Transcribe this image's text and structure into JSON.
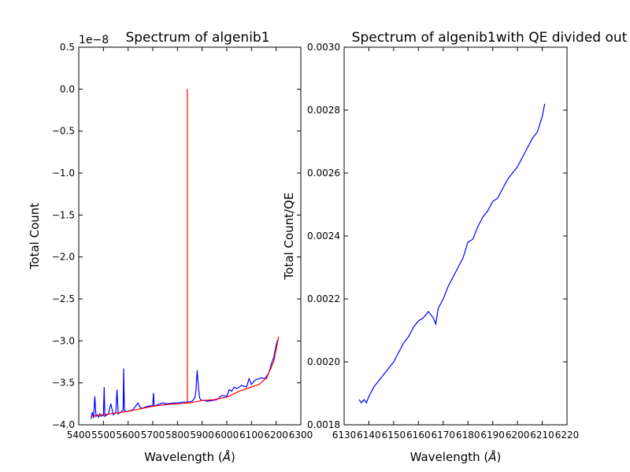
{
  "chart_data": [
    {
      "type": "line",
      "title": "Spectrum of algenib1",
      "xlabel": "Wavelength ($\\AA$)",
      "ylabel": "Total Count",
      "offset_label": "1e−8",
      "xlim": [
        5400,
        6300
      ],
      "ylim": [
        -4.0,
        0.5
      ],
      "xticks": [
        "5400",
        "5500",
        "5600",
        "5700",
        "5800",
        "5900",
        "6000",
        "6100",
        "6200",
        "6300"
      ],
      "yticks": [
        "−4.0",
        "−3.5",
        "−3.0",
        "−2.5",
        "−2.0",
        "−1.5",
        "−1.0",
        "−0.5",
        "0.0",
        "0.5"
      ],
      "series": [
        {
          "color": "#0000ff",
          "x": [
            5450,
            5455,
            5460,
            5465,
            5470,
            5475,
            5480,
            5485,
            5490,
            5495,
            5500,
            5503,
            5506,
            5510,
            5520,
            5530,
            5540,
            5550,
            5555,
            5560,
            5570,
            5580,
            5582,
            5585,
            5590,
            5600,
            5620,
            5640,
            5650,
            5660,
            5680,
            5700,
            5703,
            5706,
            5720,
            5740,
            5760,
            5780,
            5800,
            5820,
            5840,
            5860,
            5870,
            5875,
            5880,
            5885,
            5890,
            5895,
            5900,
            5910,
            5920,
            5940,
            5960,
            5980,
            6000,
            6010,
            6020,
            6030,
            6040,
            6060,
            6080,
            6090,
            6100,
            6110,
            6120,
            6140,
            6160,
            6170,
            6180,
            6190,
            6200,
            6205,
            6210
          ],
          "y": [
            -3.93,
            -3.85,
            -3.92,
            -3.66,
            -3.9,
            -3.88,
            -3.91,
            -3.87,
            -3.9,
            -3.88,
            -3.89,
            -3.55,
            -3.9,
            -3.89,
            -3.87,
            -3.75,
            -3.88,
            -3.86,
            -3.58,
            -3.87,
            -3.85,
            -3.82,
            -3.33,
            -3.83,
            -3.84,
            -3.84,
            -3.82,
            -3.74,
            -3.8,
            -3.8,
            -3.78,
            -3.77,
            -3.62,
            -3.78,
            -3.76,
            -3.74,
            -3.75,
            -3.74,
            -3.74,
            -3.73,
            -3.73,
            -3.72,
            -3.68,
            -3.6,
            -3.35,
            -3.55,
            -3.68,
            -3.7,
            -3.71,
            -3.71,
            -3.72,
            -3.71,
            -3.7,
            -3.65,
            -3.66,
            -3.58,
            -3.6,
            -3.55,
            -3.57,
            -3.53,
            -3.55,
            -3.45,
            -3.52,
            -3.48,
            -3.46,
            -3.44,
            -3.45,
            -3.38,
            -3.28,
            -3.2,
            -3.05,
            -3.0,
            -2.98
          ]
        },
        {
          "color": "#ff0000",
          "x": [
            5450,
            5500,
            5550,
            5600,
            5650,
            5700,
            5750,
            5800,
            5840,
            5840,
            5840,
            5845,
            5850,
            5900,
            5950,
            6000,
            6050,
            6100,
            6130,
            6150,
            6170,
            6190,
            6200,
            6210
          ],
          "y": [
            -3.9,
            -3.88,
            -3.86,
            -3.84,
            -3.81,
            -3.78,
            -3.76,
            -3.75,
            -3.74,
            0.0,
            -3.74,
            -3.74,
            -3.74,
            -3.71,
            -3.7,
            -3.67,
            -3.6,
            -3.55,
            -3.52,
            -3.47,
            -3.38,
            -3.25,
            -3.1,
            -2.95
          ]
        }
      ]
    },
    {
      "type": "line",
      "title": "Spectrum of algenib1with QE divided out",
      "xlabel": "Wavelength ($\\AA$)",
      "ylabel": "Total Count/QE",
      "xlim": [
        6130,
        6220
      ],
      "ylim": [
        0.0018,
        0.003
      ],
      "xticks": [
        "6130",
        "6140",
        "6150",
        "6160",
        "6170",
        "6180",
        "6190",
        "6200",
        "6210",
        "6220"
      ],
      "yticks": [
        "0.0018",
        "0.0020",
        "0.0022",
        "0.0024",
        "0.0026",
        "0.0028",
        "0.0030"
      ],
      "series": [
        {
          "color": "#0000ff",
          "x": [
            6136,
            6137,
            6138,
            6139,
            6140,
            6142,
            6144,
            6146,
            6148,
            6150,
            6152,
            6154,
            6156,
            6158,
            6160,
            6162,
            6164,
            6166,
            6167,
            6168,
            6170,
            6172,
            6174,
            6176,
            6178,
            6180,
            6182,
            6184,
            6186,
            6188,
            6190,
            6192,
            6194,
            6196,
            6198,
            6200,
            6202,
            6204,
            6206,
            6208,
            6210,
            6211
          ],
          "y": [
            0.00188,
            0.00187,
            0.00188,
            0.00187,
            0.00189,
            0.00192,
            0.00194,
            0.00196,
            0.00198,
            0.002,
            0.00203,
            0.00206,
            0.00208,
            0.00211,
            0.00213,
            0.00214,
            0.00216,
            0.00214,
            0.00212,
            0.00217,
            0.0022,
            0.00224,
            0.00227,
            0.0023,
            0.00233,
            0.00238,
            0.00239,
            0.00243,
            0.00246,
            0.00248,
            0.00251,
            0.00252,
            0.00255,
            0.00258,
            0.0026,
            0.00262,
            0.00265,
            0.00268,
            0.00271,
            0.00273,
            0.00278,
            0.00282
          ]
        }
      ]
    }
  ]
}
